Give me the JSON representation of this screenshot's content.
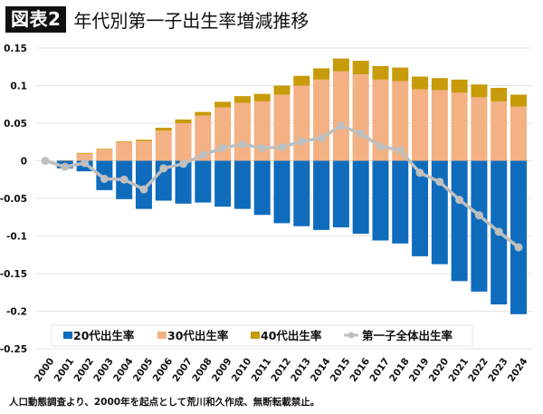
{
  "header": {
    "badge": "図表2",
    "title": "年代別第一子出生率増減推移"
  },
  "footnote": "人口動態調査より、2000年を起点として荒川和久作成、無断転載禁止。",
  "chart_data": {
    "type": "bar",
    "stacked": true,
    "title": "年代別第一子出生率増減推移",
    "xlabel": "",
    "ylabel": "",
    "ylim": [
      -0.25,
      0.15
    ],
    "yticks": [
      0.15,
      0.1,
      0.05,
      0,
      -0.05,
      -0.1,
      -0.15,
      -0.2,
      -0.25
    ],
    "ytick_labels": [
      "0.15",
      "0.1",
      "0.05",
      "0",
      "-0.05",
      "-0.1",
      "-0.15",
      "-0.2",
      "-0.25"
    ],
    "grid": true,
    "legend_position": "bottom-inside",
    "categories": [
      "2000",
      "2001",
      "2002",
      "2003",
      "2004",
      "2005",
      "2006",
      "2007",
      "2008",
      "2009",
      "2010",
      "2011",
      "2012",
      "2013",
      "2014",
      "2015",
      "2016",
      "2017",
      "2018",
      "2019",
      "2020",
      "2021",
      "2022",
      "2023",
      "2024"
    ],
    "series": [
      {
        "name": "20代出生率",
        "kind": "bar",
        "color": "#0f6cbd",
        "values": [
          0,
          -0.01,
          -0.014,
          -0.039,
          -0.051,
          -0.064,
          -0.053,
          -0.057,
          -0.0555,
          -0.061,
          -0.064,
          -0.072,
          -0.083,
          -0.087,
          -0.092,
          -0.0885,
          -0.097,
          -0.106,
          -0.11,
          -0.127,
          -0.1375,
          -0.16,
          -0.174,
          -0.191,
          -0.204
        ]
      },
      {
        "name": "30代出生率",
        "kind": "bar",
        "color": "#f4b183",
        "values": [
          0,
          0.001,
          0.0095,
          0.015,
          0.025,
          0.026,
          0.04,
          0.05,
          0.06,
          0.071,
          0.077,
          0.079,
          0.088,
          0.1,
          0.108,
          0.119,
          0.115,
          0.108,
          0.106,
          0.095,
          0.094,
          0.0905,
          0.0845,
          0.079,
          0.072
        ]
      },
      {
        "name": "40代出生率",
        "kind": "bar",
        "color": "#c89b0a",
        "values": [
          0,
          0,
          0.001,
          0.001,
          0.001,
          0.002,
          0.004,
          0.005,
          0.005,
          0.0075,
          0.009,
          0.01,
          0.012,
          0.013,
          0.015,
          0.017,
          0.018,
          0.018,
          0.018,
          0.017,
          0.016,
          0.0175,
          0.017,
          0.018,
          0.016
        ]
      },
      {
        "name": "第一子全体出生率",
        "kind": "line",
        "color": "#bfbfbf",
        "values": [
          0,
          -0.008,
          -0.003,
          -0.024,
          -0.025,
          -0.038,
          -0.01,
          -0.004,
          0.008,
          0.017,
          0.022,
          0.017,
          0.018,
          0.026,
          0.03,
          0.047,
          0.036,
          0.019,
          0.014,
          -0.016,
          -0.028,
          -0.052,
          -0.0725,
          -0.0945,
          -0.115
        ]
      }
    ]
  }
}
